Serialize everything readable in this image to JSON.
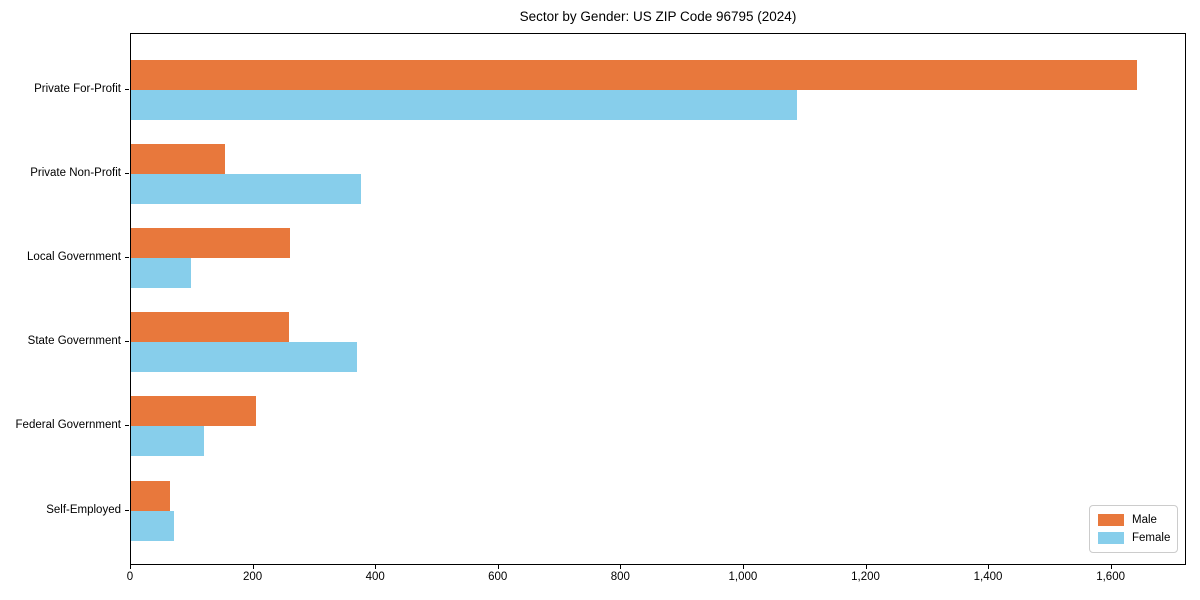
{
  "figure": {
    "background": "#ffffff"
  },
  "chart_data": {
    "type": "bar",
    "orientation": "horizontal",
    "title": "Sector by Gender: US ZIP Code 96795 (2024)",
    "xlabel": "",
    "ylabel": "",
    "categories": [
      "Private For-Profit",
      "Private Non-Profit",
      "Local Government",
      "State Government",
      "Federal Government",
      "Self-Employed"
    ],
    "series": [
      {
        "name": "Male",
        "color": "#e8783c",
        "values": [
          1641,
          153,
          259,
          257,
          204,
          63
        ]
      },
      {
        "name": "Female",
        "color": "#87ceeb",
        "values": [
          1087,
          376,
          98,
          368,
          119,
          70
        ]
      }
    ],
    "xlim": [
      0,
      1723
    ],
    "x_ticks": [
      0,
      200,
      400,
      600,
      800,
      1000,
      1200,
      1400,
      1600
    ],
    "x_tick_labels": [
      "0",
      "200",
      "400",
      "600",
      "800",
      "1,000",
      "1,200",
      "1,400",
      "1,600"
    ],
    "grid": false,
    "legend": {
      "position": "lower right",
      "entries": [
        "Male",
        "Female"
      ]
    }
  }
}
